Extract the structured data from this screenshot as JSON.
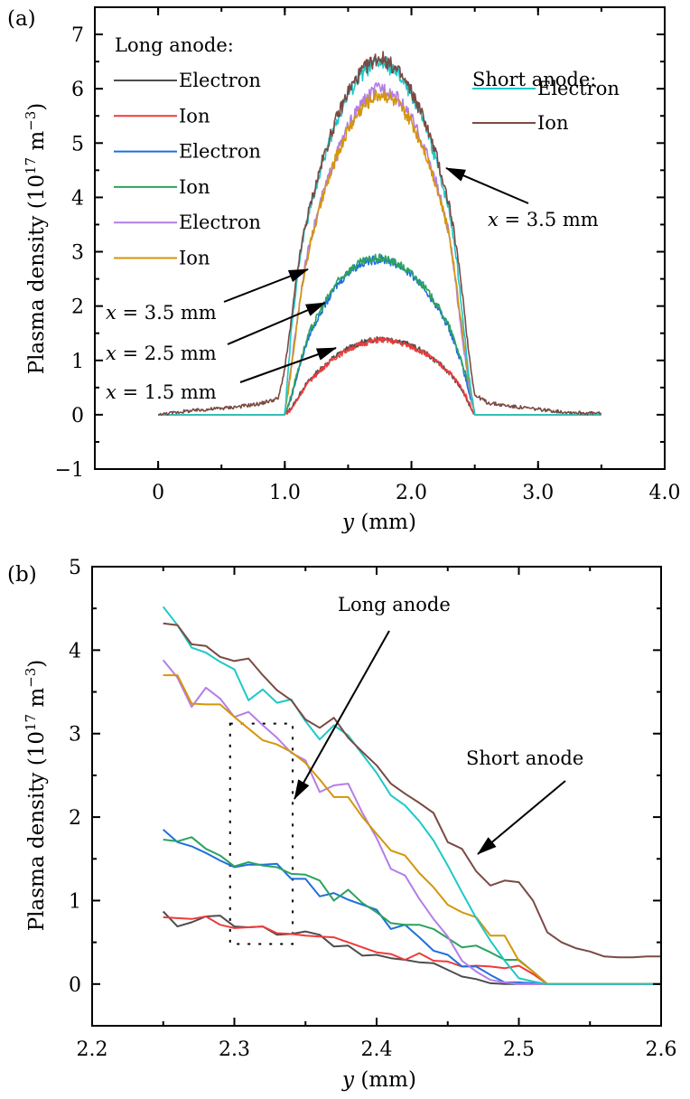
{
  "chart_data": [
    {
      "type": "line",
      "panel_label": "(a)",
      "title": "",
      "xlabel_var": "y",
      "xlabel_unit": "(mm)",
      "ylabel": "Plasma density (10^17 m^-3)",
      "ylabel_main": "Plasma density (10",
      "ylabel_exp": "17",
      "ylabel_unit": " m",
      "ylabel_unit_exp": "−3",
      "ylabel_close": ")",
      "xlim": [
        -0.5,
        4.0
      ],
      "ylim": [
        -1,
        7.5
      ],
      "xticks": [
        0,
        1.0,
        2.0,
        3.0,
        4.0
      ],
      "xtick_labels": [
        "0",
        "1.0",
        "2.0",
        "3.0",
        "4.0"
      ],
      "yticks": [
        -1,
        0,
        1,
        2,
        3,
        4,
        5,
        6,
        7
      ],
      "ytick_labels": [
        "−1",
        "0",
        "1",
        "2",
        "3",
        "4",
        "5",
        "6",
        "7"
      ],
      "grid": false,
      "legend_groups": [
        {
          "title": "Long anode:",
          "placement": "top-left",
          "entries": [
            {
              "label": "Electron",
              "series": 0
            },
            {
              "label": "Ion",
              "series": 1
            },
            {
              "label": "Electron",
              "series": 2
            },
            {
              "label": "Ion",
              "series": 3
            },
            {
              "label": "Electron",
              "series": 4
            },
            {
              "label": "Ion",
              "series": 5
            }
          ]
        },
        {
          "title": "Short anode:",
          "placement": "top-right",
          "entries": [
            {
              "label": "Electron",
              "series": 6
            },
            {
              "label": "Ion",
              "series": 7
            }
          ]
        }
      ],
      "annotations": [
        {
          "text": "x = 3.5 mm",
          "var": "x",
          "rest": " = 3.5 mm",
          "target": "long anode x=3.5 mm curves"
        },
        {
          "text": "x = 2.5 mm",
          "var": "x",
          "rest": " = 2.5 mm",
          "target": "long anode x=2.5 mm curves"
        },
        {
          "text": "x = 1.5 mm",
          "var": "x",
          "rest": " = 1.5 mm",
          "target": "long anode x=1.5 mm curves"
        },
        {
          "text": "x = 3.5 mm",
          "var": "x",
          "rest": " = 3.5 mm",
          "target": "short anode curves"
        }
      ],
      "x": [
        0,
        0.2,
        0.4,
        0.6,
        0.8,
        0.95,
        1.0,
        1.05,
        1.1,
        1.15,
        1.2,
        1.3,
        1.4,
        1.5,
        1.6,
        1.7,
        1.75,
        1.8,
        1.9,
        2.0,
        2.1,
        2.2,
        2.3,
        2.35,
        2.4,
        2.45,
        2.5,
        2.55,
        2.6,
        2.8,
        3.0,
        3.2,
        3.5
      ],
      "series": [
        {
          "name": "Long anode, x=1.5 mm, Electron",
          "color": "#4d4d4d",
          "values": [
            0,
            0,
            0,
            0,
            0,
            0,
            0,
            0.12,
            0.3,
            0.5,
            0.65,
            0.88,
            1.08,
            1.22,
            1.32,
            1.38,
            1.42,
            1.4,
            1.36,
            1.27,
            1.15,
            0.98,
            0.77,
            0.62,
            0.45,
            0.22,
            0,
            0,
            0,
            0,
            0,
            0,
            0
          ]
        },
        {
          "name": "Long anode, x=1.5 mm, Ion",
          "color": "#ee3b3b",
          "values": [
            0,
            0,
            0,
            0,
            0,
            0,
            0,
            0.1,
            0.28,
            0.48,
            0.63,
            0.86,
            1.06,
            1.2,
            1.3,
            1.36,
            1.38,
            1.37,
            1.33,
            1.25,
            1.14,
            0.97,
            0.78,
            0.64,
            0.48,
            0.25,
            0,
            0,
            0,
            0,
            0,
            0,
            0
          ]
        },
        {
          "name": "Long anode, x=2.5 mm, Electron",
          "color": "#1f6fdd",
          "values": [
            0,
            0,
            0,
            0,
            0,
            0,
            0,
            0.3,
            0.75,
            1.15,
            1.5,
            1.95,
            2.35,
            2.62,
            2.78,
            2.85,
            2.86,
            2.85,
            2.75,
            2.58,
            2.33,
            2.0,
            1.58,
            1.25,
            0.92,
            0.45,
            0,
            0,
            0,
            0,
            0,
            0,
            0
          ]
        },
        {
          "name": "Long anode, x=2.5 mm, Ion",
          "color": "#2ca25f",
          "values": [
            0,
            0,
            0,
            0,
            0,
            0,
            0,
            0.35,
            0.8,
            1.2,
            1.55,
            2.0,
            2.4,
            2.65,
            2.8,
            2.87,
            2.88,
            2.86,
            2.77,
            2.6,
            2.36,
            2.03,
            1.62,
            1.3,
            0.97,
            0.55,
            0,
            0,
            0,
            0,
            0,
            0,
            0
          ]
        },
        {
          "name": "Long anode, x=3.5 mm, Electron",
          "color": "#b47de8",
          "values": [
            0,
            0,
            0,
            0,
            0,
            0,
            0,
            0.9,
            1.8,
            2.6,
            3.2,
            4.05,
            4.75,
            5.3,
            5.7,
            5.95,
            6.02,
            6.0,
            5.8,
            5.45,
            4.95,
            4.25,
            3.3,
            2.4,
            1.45,
            0.6,
            0,
            0,
            0,
            0,
            0,
            0,
            0
          ]
        },
        {
          "name": "Long anode, x=3.5 mm, Ion",
          "color": "#d4960a",
          "values": [
            0,
            0,
            0,
            0,
            0,
            0,
            0,
            0.8,
            1.75,
            2.55,
            3.15,
            4.0,
            4.7,
            5.25,
            5.62,
            5.85,
            5.9,
            5.88,
            5.7,
            5.38,
            4.9,
            4.2,
            3.3,
            2.5,
            1.6,
            0.7,
            0,
            0,
            0,
            0,
            0,
            0,
            0
          ]
        },
        {
          "name": "Short anode, Electron",
          "color": "#1ec8c8",
          "values": [
            0,
            0,
            0,
            0,
            0,
            0,
            0,
            1.5,
            2.6,
            3.3,
            3.8,
            4.65,
            5.35,
            5.9,
            6.25,
            6.45,
            6.5,
            6.45,
            6.25,
            5.9,
            5.38,
            4.65,
            3.75,
            3.0,
            1.9,
            0.8,
            0,
            0,
            0,
            0,
            0,
            0,
            0
          ]
        },
        {
          "name": "Short anode, Ion",
          "color": "#7a4a44",
          "values": [
            0,
            0.06,
            0.1,
            0.14,
            0.2,
            0.3,
            0.85,
            1.7,
            2.65,
            3.35,
            3.85,
            4.7,
            5.4,
            5.95,
            6.3,
            6.52,
            6.58,
            6.52,
            6.3,
            5.95,
            5.45,
            4.75,
            3.85,
            3.15,
            2.3,
            1.2,
            0.35,
            0.3,
            0.22,
            0.15,
            0.1,
            0.05,
            0.02
          ]
        }
      ]
    },
    {
      "type": "line",
      "panel_label": "(b)",
      "title": "",
      "xlabel_var": "y",
      "xlabel_unit": "(mm)",
      "ylabel": "Plasma density (10^17 m^-3)",
      "ylabel_main": "Plasma density (10",
      "ylabel_exp": "17",
      "ylabel_unit": " m",
      "ylabel_unit_exp": "−3",
      "ylabel_close": ")",
      "xlim": [
        2.2,
        2.6
      ],
      "ylim": [
        -0.5,
        5
      ],
      "xticks": [
        2.2,
        2.3,
        2.4,
        2.5,
        2.6
      ],
      "xtick_labels": [
        "2.2",
        "2.3",
        "2.4",
        "2.5",
        "2.6"
      ],
      "yticks": [
        0,
        1,
        2,
        3,
        4,
        5
      ],
      "ytick_labels": [
        "0",
        "1",
        "2",
        "3",
        "4",
        "5"
      ],
      "grid": false,
      "annotations": [
        {
          "text": "Long anode",
          "target": "dotted box region"
        },
        {
          "text": "Short anode",
          "target": "short anode ion curve"
        }
      ],
      "highlight_box": {
        "x_range": [
          2.297,
          2.341
        ],
        "y_range": [
          0.48,
          3.12
        ],
        "style": "dotted"
      },
      "x": [
        2.25,
        2.26,
        2.27,
        2.28,
        2.29,
        2.3,
        2.31,
        2.32,
        2.33,
        2.34,
        2.35,
        2.36,
        2.37,
        2.38,
        2.39,
        2.4,
        2.41,
        2.42,
        2.43,
        2.44,
        2.45,
        2.46,
        2.47,
        2.48,
        2.49,
        2.5,
        2.51,
        2.52,
        2.53,
        2.54,
        2.55,
        2.56,
        2.57,
        2.58,
        2.59,
        2.6
      ],
      "series": [
        {
          "name": "Long anode, x=1.5 mm, Electron",
          "color": "#4d4d4d",
          "values": [
            0.87,
            0.69,
            0.74,
            0.81,
            0.82,
            0.69,
            0.68,
            0.69,
            0.59,
            0.6,
            0.63,
            0.59,
            0.45,
            0.46,
            0.34,
            0.35,
            0.31,
            0.29,
            0.26,
            0.25,
            0.17,
            0.09,
            0.06,
            0.01,
            0,
            0,
            0,
            0,
            0,
            0,
            0,
            0,
            0,
            0,
            0,
            0
          ]
        },
        {
          "name": "Long anode, x=1.5 mm, Ion",
          "color": "#ee3b3b",
          "values": [
            0.8,
            0.79,
            0.78,
            0.81,
            0.71,
            0.67,
            0.68,
            0.69,
            0.61,
            0.6,
            0.58,
            0.57,
            0.56,
            0.5,
            0.44,
            0.38,
            0.36,
            0.29,
            0.37,
            0.28,
            0.27,
            0.21,
            0.22,
            0.21,
            0.19,
            0.22,
            0.12,
            0,
            0,
            0,
            0,
            0,
            0,
            0,
            0,
            0
          ]
        },
        {
          "name": "Long anode, x=2.5 mm, Electron",
          "color": "#1f6fdd",
          "values": [
            1.85,
            1.7,
            1.65,
            1.57,
            1.48,
            1.4,
            1.43,
            1.43,
            1.44,
            1.26,
            1.26,
            1.05,
            1.09,
            1.01,
            0.95,
            0.89,
            0.66,
            0.71,
            0.56,
            0.4,
            0.35,
            0.21,
            0.21,
            0.11,
            0.02,
            0.02,
            0.01,
            0,
            0,
            0,
            0,
            0,
            0,
            0,
            0,
            0
          ]
        },
        {
          "name": "Long anode, x=2.5 mm, Ion",
          "color": "#2ca25f",
          "values": [
            1.73,
            1.71,
            1.76,
            1.62,
            1.54,
            1.41,
            1.46,
            1.42,
            1.4,
            1.32,
            1.31,
            1.24,
            1.0,
            1.13,
            0.97,
            0.86,
            0.73,
            0.71,
            0.71,
            0.66,
            0.55,
            0.44,
            0.46,
            0.38,
            0.29,
            0.29,
            0.15,
            0,
            0,
            0,
            0,
            0,
            0,
            0,
            0,
            0
          ]
        },
        {
          "name": "Long anode, x=3.5 mm, Electron",
          "color": "#b47de8",
          "values": [
            3.88,
            3.67,
            3.32,
            3.55,
            3.42,
            3.2,
            3.26,
            3.1,
            2.95,
            2.77,
            2.68,
            2.3,
            2.38,
            2.4,
            2.05,
            1.75,
            1.38,
            1.3,
            1.02,
            0.78,
            0.57,
            0.28,
            0.15,
            0.05,
            0.02,
            0,
            0,
            0,
            0,
            0,
            0,
            0,
            0,
            0,
            0,
            0
          ]
        },
        {
          "name": "Long anode, x=3.5 mm, Ion",
          "color": "#d4960a",
          "values": [
            3.7,
            3.7,
            3.36,
            3.35,
            3.35,
            3.2,
            3.06,
            2.92,
            2.87,
            2.78,
            2.65,
            2.45,
            2.24,
            2.24,
            2.0,
            1.8,
            1.6,
            1.54,
            1.33,
            1.16,
            0.95,
            0.86,
            0.8,
            0.58,
            0.58,
            0.28,
            0.15,
            0,
            0,
            0,
            0,
            0,
            0,
            0,
            0,
            0
          ]
        },
        {
          "name": "Short anode, Electron",
          "color": "#1ec8c8",
          "values": [
            4.52,
            4.3,
            4.03,
            3.97,
            3.86,
            3.77,
            3.4,
            3.53,
            3.37,
            3.41,
            3.15,
            2.93,
            3.1,
            2.98,
            2.75,
            2.53,
            2.26,
            2.14,
            1.95,
            1.72,
            1.42,
            1.1,
            0.79,
            0.52,
            0.28,
            0.07,
            0.03,
            0,
            0,
            0,
            0,
            0,
            0,
            0,
            0,
            0
          ]
        },
        {
          "name": "Short anode, Ion",
          "color": "#7a4a44",
          "values": [
            4.32,
            4.3,
            4.07,
            4.05,
            3.92,
            3.87,
            3.9,
            3.7,
            3.52,
            3.4,
            3.17,
            3.07,
            3.19,
            2.95,
            2.78,
            2.62,
            2.4,
            2.28,
            2.17,
            2.05,
            1.7,
            1.62,
            1.35,
            1.18,
            1.24,
            1.22,
            1.0,
            0.62,
            0.5,
            0.43,
            0.39,
            0.33,
            0.32,
            0.32,
            0.33,
            0.33
          ]
        }
      ]
    }
  ]
}
